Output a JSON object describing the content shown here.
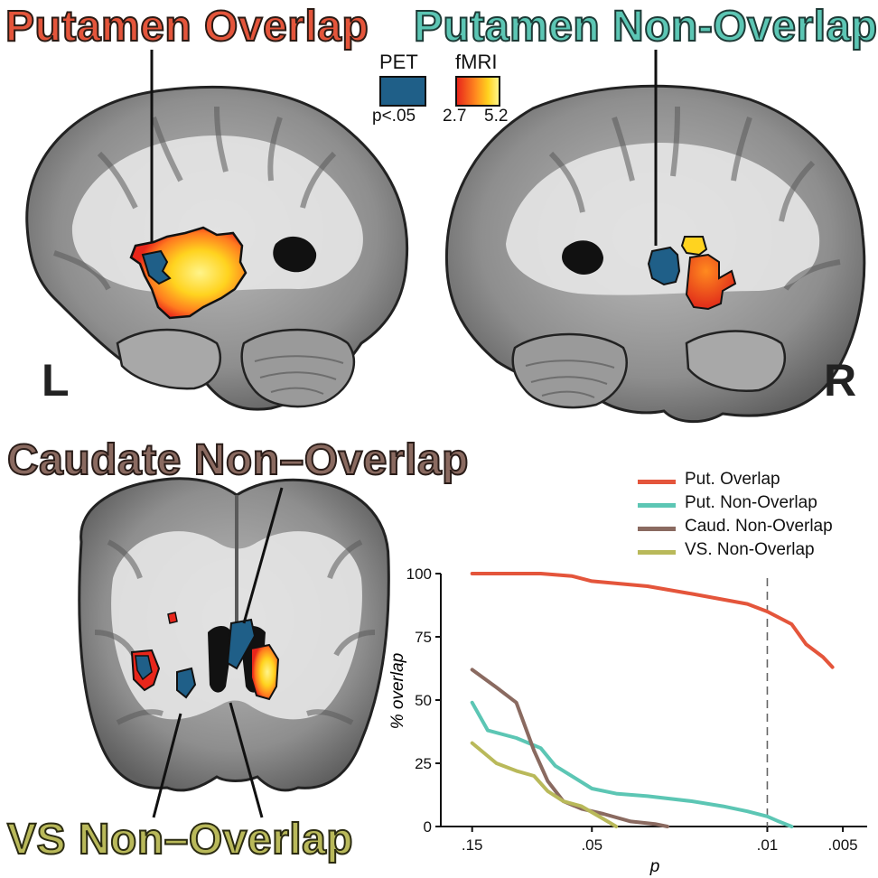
{
  "titles": {
    "putamen_overlap": "Putamen Overlap",
    "putamen_non_overlap": "Putamen Non-Overlap",
    "caudate_non_overlap": "Caudate Non–Overlap",
    "vs_non_overlap": "VS Non–Overlap"
  },
  "hemispheres": {
    "left": "L",
    "right": "R"
  },
  "map_legend": {
    "pet": {
      "label": "PET",
      "threshold": "p<.05",
      "color": "#1f5f88"
    },
    "fmri": {
      "label": "fMRI",
      "min": "2.7",
      "max": "5.2",
      "colors": [
        "#e8261b",
        "#ffd31f",
        "#fff48a"
      ]
    }
  },
  "chart_data": {
    "type": "line",
    "ylabel": "% overlap",
    "xlabel": "p",
    "x_tick_labels": [
      ".15",
      ".05",
      ".01",
      ".005"
    ],
    "x_tick_values": [
      0.15,
      0.05,
      0.01,
      0.005
    ],
    "x_scale": "log",
    "x_range": [
      0.2,
      0.004
    ],
    "y_tick_labels": [
      "100",
      "75",
      "50",
      "25",
      "0"
    ],
    "ylim": [
      0,
      100
    ],
    "reference_line": {
      "x": 0.01,
      "style": "dashed"
    },
    "legend_position": "top-right",
    "series": [
      {
        "name": "Put. Overlap",
        "color": "#e4553b",
        "x": [
          0.15,
          0.1,
          0.08,
          0.06,
          0.05,
          0.03,
          0.02,
          0.012,
          0.01,
          0.008,
          0.007,
          0.006,
          0.0055
        ],
        "y": [
          100,
          100,
          100,
          99,
          97,
          95,
          92,
          88,
          85,
          80,
          72,
          67,
          63
        ]
      },
      {
        "name": "Put. Non-Overlap",
        "color": "#5cc6b4",
        "x": [
          0.15,
          0.13,
          0.1,
          0.08,
          0.07,
          0.05,
          0.04,
          0.03,
          0.02,
          0.015,
          0.012,
          0.01,
          0.009,
          0.008
        ],
        "y": [
          49,
          38,
          35,
          31,
          24,
          15,
          13,
          12,
          10,
          8,
          6,
          4,
          2,
          0
        ]
      },
      {
        "name": "Caud. Non-Overlap",
        "color": "#8a6a60",
        "x": [
          0.15,
          0.12,
          0.1,
          0.085,
          0.075,
          0.065,
          0.055,
          0.045,
          0.035,
          0.028,
          0.025
        ],
        "y": [
          62,
          55,
          49,
          30,
          18,
          10,
          7,
          5,
          2,
          1,
          0
        ]
      },
      {
        "name": "VS. Non-Overlap",
        "color": "#b9b95a",
        "x": [
          0.15,
          0.12,
          0.1,
          0.085,
          0.075,
          0.065,
          0.055,
          0.045,
          0.04
        ],
        "y": [
          33,
          25,
          22,
          20,
          14,
          10,
          8,
          3,
          0
        ]
      }
    ]
  }
}
